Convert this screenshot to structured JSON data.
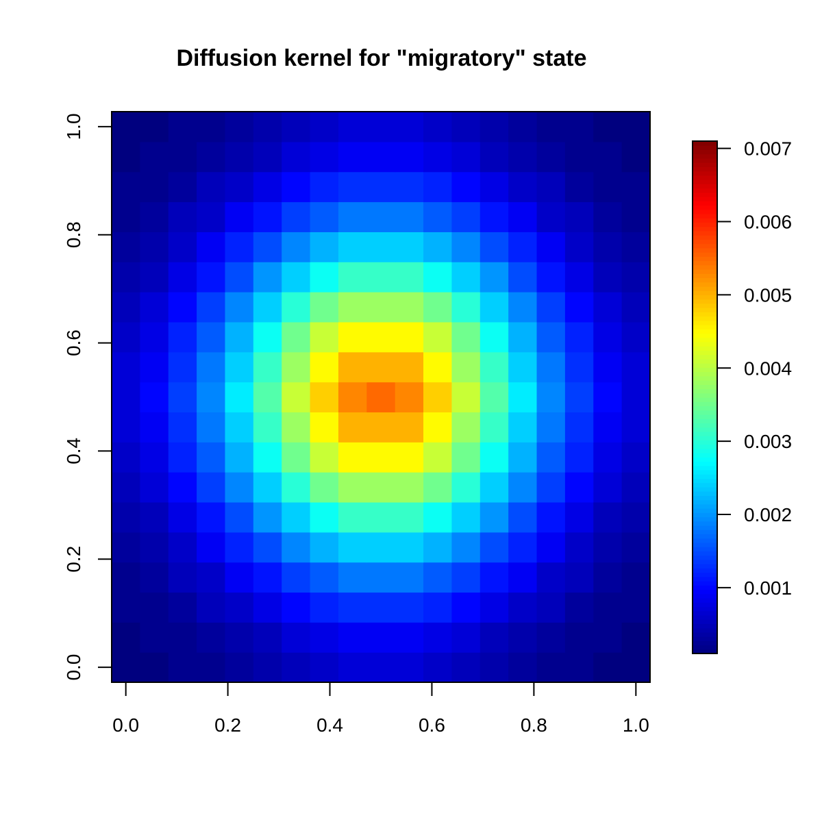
{
  "chart_data": {
    "type": "heatmap",
    "title": "Diffusion kernel for \"migratory\" state",
    "xlabel": "",
    "ylabel": "",
    "xlim": [
      0.0,
      1.0
    ],
    "ylim": [
      0.0,
      1.0
    ],
    "x_ticks": [
      0.0,
      0.2,
      0.4,
      0.6,
      0.8,
      1.0
    ],
    "x_tick_labels": [
      "0.0",
      "0.2",
      "0.4",
      "0.6",
      "0.8",
      "1.0"
    ],
    "y_ticks": [
      0.0,
      0.2,
      0.4,
      0.6,
      0.8,
      1.0
    ],
    "y_tick_labels": [
      "0.0",
      "0.2",
      "0.4",
      "0.6",
      "0.8",
      "1.0"
    ],
    "grid_size": [
      19,
      19
    ],
    "x_centers": [
      0.0,
      0.0556,
      0.1111,
      0.1667,
      0.2222,
      0.2778,
      0.3333,
      0.3889,
      0.4444,
      0.5,
      0.5556,
      0.6111,
      0.6667,
      0.7222,
      0.7778,
      0.8333,
      0.8889,
      0.9444,
      1.0
    ],
    "y_centers": [
      0.0,
      0.0556,
      0.1111,
      0.1667,
      0.2222,
      0.2778,
      0.3333,
      0.3889,
      0.4444,
      0.5,
      0.5556,
      0.6111,
      0.6667,
      0.7222,
      0.7778,
      0.8333,
      0.8889,
      0.9444,
      1.0
    ],
    "values": [
      [
        0.0001,
        0.0001,
        0.0002,
        0.0002,
        0.0003,
        0.0004,
        0.0005,
        0.0006,
        0.0007,
        0.0007,
        0.0007,
        0.0006,
        0.0005,
        0.0004,
        0.0003,
        0.0002,
        0.0002,
        0.0001,
        0.0001
      ],
      [
        0.0001,
        0.0002,
        0.0002,
        0.0003,
        0.0004,
        0.0005,
        0.0007,
        0.0008,
        0.0009,
        0.0009,
        0.0009,
        0.0008,
        0.0007,
        0.0005,
        0.0004,
        0.0003,
        0.0002,
        0.0002,
        0.0001
      ],
      [
        0.0002,
        0.0002,
        0.0003,
        0.0005,
        0.0006,
        0.0008,
        0.001,
        0.0012,
        0.0013,
        0.0013,
        0.0013,
        0.0012,
        0.001,
        0.0008,
        0.0006,
        0.0005,
        0.0003,
        0.0002,
        0.0002
      ],
      [
        0.0002,
        0.0003,
        0.0005,
        0.0006,
        0.0009,
        0.0011,
        0.0014,
        0.0016,
        0.0018,
        0.0018,
        0.0018,
        0.0016,
        0.0014,
        0.0011,
        0.0009,
        0.0006,
        0.0005,
        0.0003,
        0.0002
      ],
      [
        0.0003,
        0.0004,
        0.0006,
        0.0009,
        0.0012,
        0.0015,
        0.0019,
        0.0022,
        0.0024,
        0.0024,
        0.0024,
        0.0022,
        0.0019,
        0.0015,
        0.0012,
        0.0009,
        0.0006,
        0.0004,
        0.0003
      ],
      [
        0.0004,
        0.0005,
        0.0008,
        0.0011,
        0.0015,
        0.002,
        0.0024,
        0.0028,
        0.0031,
        0.0031,
        0.0031,
        0.0028,
        0.0024,
        0.002,
        0.0015,
        0.0011,
        0.0008,
        0.0005,
        0.0004
      ],
      [
        0.0005,
        0.0007,
        0.001,
        0.0014,
        0.0019,
        0.0024,
        0.003,
        0.0035,
        0.0038,
        0.0038,
        0.0038,
        0.0035,
        0.003,
        0.0024,
        0.0019,
        0.0014,
        0.001,
        0.0007,
        0.0005
      ],
      [
        0.0006,
        0.0008,
        0.0012,
        0.0016,
        0.0022,
        0.0028,
        0.0035,
        0.0041,
        0.0045,
        0.0045,
        0.0045,
        0.0041,
        0.0035,
        0.0028,
        0.0022,
        0.0016,
        0.0012,
        0.0008,
        0.0006
      ],
      [
        0.0007,
        0.0009,
        0.0013,
        0.0018,
        0.0024,
        0.0031,
        0.0038,
        0.0045,
        0.005,
        0.005,
        0.005,
        0.0045,
        0.0038,
        0.0031,
        0.0024,
        0.0018,
        0.0013,
        0.0009,
        0.0007
      ],
      [
        0.0007,
        0.001,
        0.0014,
        0.0019,
        0.0026,
        0.0033,
        0.0041,
        0.0048,
        0.0053,
        0.0055,
        0.0053,
        0.0048,
        0.0041,
        0.0033,
        0.0026,
        0.0019,
        0.0014,
        0.001,
        0.0007
      ],
      [
        0.0007,
        0.0009,
        0.0013,
        0.0018,
        0.0024,
        0.0031,
        0.0038,
        0.0045,
        0.005,
        0.005,
        0.005,
        0.0045,
        0.0038,
        0.0031,
        0.0024,
        0.0018,
        0.0013,
        0.0009,
        0.0007
      ],
      [
        0.0006,
        0.0008,
        0.0012,
        0.0016,
        0.0022,
        0.0028,
        0.0035,
        0.0041,
        0.0045,
        0.0045,
        0.0045,
        0.0041,
        0.0035,
        0.0028,
        0.0022,
        0.0016,
        0.0012,
        0.0008,
        0.0006
      ],
      [
        0.0005,
        0.0007,
        0.001,
        0.0014,
        0.0019,
        0.0024,
        0.003,
        0.0035,
        0.0038,
        0.0038,
        0.0038,
        0.0035,
        0.003,
        0.0024,
        0.0019,
        0.0014,
        0.001,
        0.0007,
        0.0005
      ],
      [
        0.0004,
        0.0005,
        0.0008,
        0.0011,
        0.0015,
        0.002,
        0.0024,
        0.0028,
        0.0031,
        0.0031,
        0.0031,
        0.0028,
        0.0024,
        0.002,
        0.0015,
        0.0011,
        0.0008,
        0.0005,
        0.0004
      ],
      [
        0.0003,
        0.0004,
        0.0006,
        0.0009,
        0.0012,
        0.0015,
        0.0019,
        0.0022,
        0.0024,
        0.0024,
        0.0024,
        0.0022,
        0.0019,
        0.0015,
        0.0012,
        0.0009,
        0.0006,
        0.0004,
        0.0003
      ],
      [
        0.0002,
        0.0003,
        0.0005,
        0.0006,
        0.0009,
        0.0011,
        0.0014,
        0.0016,
        0.0018,
        0.0018,
        0.0018,
        0.0016,
        0.0014,
        0.0011,
        0.0009,
        0.0006,
        0.0005,
        0.0003,
        0.0002
      ],
      [
        0.0002,
        0.0002,
        0.0003,
        0.0005,
        0.0006,
        0.0008,
        0.001,
        0.0012,
        0.0013,
        0.0013,
        0.0013,
        0.0012,
        0.001,
        0.0008,
        0.0006,
        0.0005,
        0.0003,
        0.0002,
        0.0002
      ],
      [
        0.0001,
        0.0002,
        0.0002,
        0.0003,
        0.0004,
        0.0005,
        0.0007,
        0.0008,
        0.0009,
        0.0009,
        0.0009,
        0.0008,
        0.0007,
        0.0005,
        0.0004,
        0.0003,
        0.0002,
        0.0002,
        0.0001
      ],
      [
        0.0001,
        0.0001,
        0.0002,
        0.0002,
        0.0003,
        0.0004,
        0.0005,
        0.0006,
        0.0007,
        0.0007,
        0.0007,
        0.0006,
        0.0005,
        0.0004,
        0.0003,
        0.0002,
        0.0002,
        0.0001,
        0.0001
      ]
    ],
    "colorbar": {
      "min": 0.0001,
      "max": 0.0071,
      "ticks": [
        0.001,
        0.002,
        0.003,
        0.004,
        0.005,
        0.006,
        0.007
      ],
      "tick_labels": [
        "0.001",
        "0.002",
        "0.003",
        "0.004",
        "0.005",
        "0.006",
        "0.007"
      ],
      "palette": "jet",
      "colors": [
        "#00007f",
        "#0000ff",
        "#007fff",
        "#00ffff",
        "#7fff7f",
        "#ffff00",
        "#ff7f00",
        "#ff0000",
        "#7f0000"
      ],
      "placement": "right"
    },
    "grid": false
  }
}
